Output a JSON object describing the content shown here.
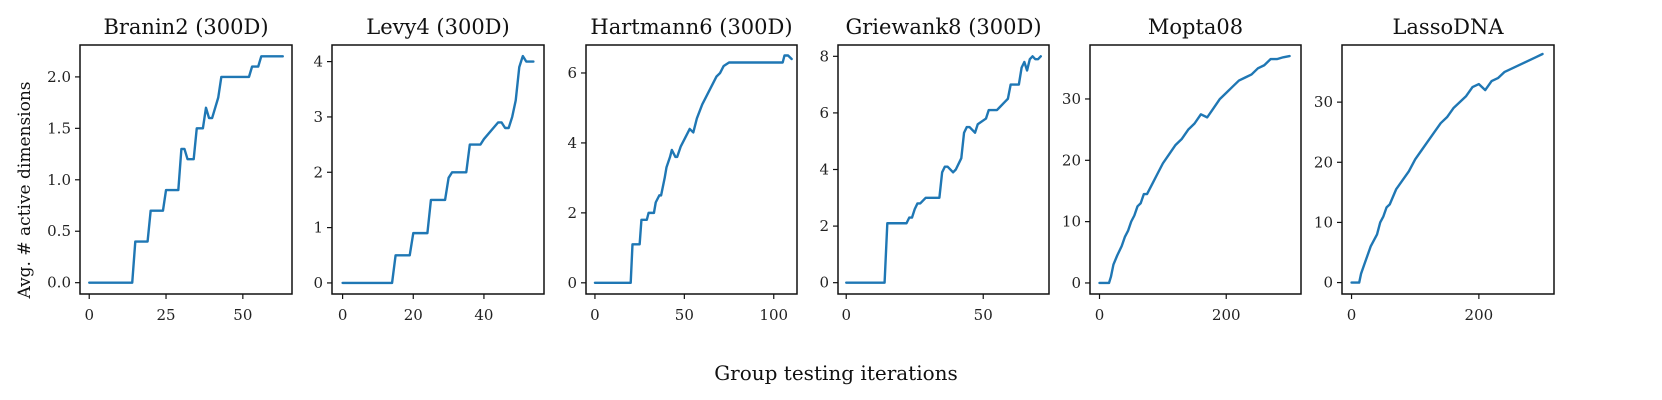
{
  "figure": {
    "xlabel": "Group testing iterations",
    "ylabel": "Avg. # active dimensions",
    "line_color": "#1f77b4"
  },
  "chart_data": [
    {
      "type": "line",
      "title": "Branin2 (300D)",
      "xlim": [
        -3,
        66
      ],
      "ylim": [
        -0.11,
        2.31
      ],
      "xticks": [
        0,
        25,
        50
      ],
      "yticks": [
        0.0,
        0.5,
        1.0,
        1.5,
        2.0
      ],
      "ytick_labels": [
        "0.0",
        "0.5",
        "1.0",
        "1.5",
        "2.0"
      ],
      "x": [
        0,
        14,
        15,
        19,
        20,
        24,
        25,
        29,
        30,
        31,
        32,
        34,
        35,
        37,
        38,
        39,
        40,
        42,
        43,
        45,
        51,
        52,
        53,
        54,
        55,
        56,
        57,
        58,
        63
      ],
      "y": [
        0,
        0,
        0.4,
        0.4,
        0.7,
        0.7,
        0.9,
        0.9,
        1.3,
        1.3,
        1.2,
        1.2,
        1.5,
        1.5,
        1.7,
        1.6,
        1.6,
        1.8,
        2.0,
        2.0,
        2.0,
        2.0,
        2.1,
        2.1,
        2.1,
        2.2,
        2.2,
        2.2,
        2.2
      ]
    },
    {
      "type": "line",
      "title": "Levy4 (300D)",
      "xlim": [
        -3,
        57
      ],
      "ylim": [
        -0.2,
        4.3
      ],
      "xticks": [
        0,
        20,
        40
      ],
      "yticks": [
        0,
        1,
        2,
        3,
        4
      ],
      "ytick_labels": [
        "0",
        "1",
        "2",
        "3",
        "4"
      ],
      "x": [
        0,
        14,
        15,
        19,
        20,
        24,
        25,
        29,
        30,
        31,
        35,
        36,
        39,
        40,
        44,
        45,
        46,
        47,
        48,
        49,
        50,
        51,
        52,
        54
      ],
      "y": [
        0,
        0,
        0.5,
        0.5,
        0.9,
        0.9,
        1.5,
        1.5,
        1.9,
        2.0,
        2.0,
        2.5,
        2.5,
        2.6,
        2.9,
        2.9,
        2.8,
        2.8,
        3.0,
        3.3,
        3.9,
        4.1,
        4.0,
        4.0
      ]
    },
    {
      "type": "line",
      "title": "Hartmann6 (300D)",
      "xlim": [
        -5,
        113
      ],
      "ylim": [
        -0.32,
        6.8
      ],
      "xticks": [
        0,
        50,
        100
      ],
      "yticks": [
        0,
        2,
        4,
        6
      ],
      "ytick_labels": [
        "0",
        "2",
        "4",
        "6"
      ],
      "x": [
        0,
        20,
        21,
        25,
        26,
        29,
        30,
        33,
        34,
        36,
        37,
        39,
        40,
        42,
        43,
        45,
        46,
        48,
        50,
        53,
        55,
        57,
        60,
        62,
        65,
        68,
        70,
        72,
        75,
        80,
        90,
        105,
        106,
        108,
        110
      ],
      "y": [
        0,
        0,
        1.1,
        1.1,
        1.8,
        1.8,
        2.0,
        2.0,
        2.3,
        2.5,
        2.5,
        3.0,
        3.3,
        3.6,
        3.8,
        3.6,
        3.6,
        3.9,
        4.1,
        4.4,
        4.3,
        4.7,
        5.1,
        5.3,
        5.6,
        5.9,
        6.0,
        6.2,
        6.3,
        6.3,
        6.3,
        6.3,
        6.5,
        6.5,
        6.4
      ]
    },
    {
      "type": "line",
      "title": "Griewank8 (300D)",
      "xlim": [
        -3,
        74
      ],
      "ylim": [
        -0.4,
        8.4
      ],
      "xticks": [
        0,
        50
      ],
      "yticks": [
        0,
        2,
        4,
        6,
        8
      ],
      "ytick_labels": [
        "0",
        "2",
        "4",
        "6",
        "8"
      ],
      "x": [
        0,
        14,
        15,
        22,
        23,
        24,
        25,
        26,
        27,
        29,
        30,
        34,
        35,
        36,
        37,
        39,
        40,
        42,
        43,
        44,
        45,
        47,
        48,
        51,
        52,
        55,
        56,
        58,
        59,
        60,
        63,
        64,
        65,
        66,
        67,
        68,
        69,
        70,
        71
      ],
      "y": [
        0,
        0,
        2.1,
        2.1,
        2.3,
        2.3,
        2.6,
        2.8,
        2.8,
        3.0,
        3.0,
        3.0,
        3.9,
        4.1,
        4.1,
        3.9,
        4.0,
        4.4,
        5.3,
        5.5,
        5.5,
        5.3,
        5.6,
        5.8,
        6.1,
        6.1,
        6.2,
        6.4,
        6.5,
        7.0,
        7.0,
        7.6,
        7.8,
        7.5,
        7.9,
        8.0,
        7.9,
        7.9,
        8.0
      ]
    },
    {
      "type": "line",
      "title": "Mopta08",
      "xlim": [
        -15,
        318
      ],
      "ylim": [
        -1.8,
        38.8
      ],
      "xticks": [
        0,
        200
      ],
      "yticks": [
        0,
        10,
        20,
        30
      ],
      "ytick_labels": [
        "0",
        "10",
        "20",
        "30"
      ],
      "x": [
        0,
        15,
        18,
        22,
        28,
        35,
        40,
        45,
        50,
        55,
        60,
        65,
        70,
        75,
        80,
        85,
        90,
        100,
        110,
        120,
        130,
        140,
        150,
        160,
        170,
        180,
        190,
        200,
        210,
        220,
        230,
        240,
        250,
        260,
        270,
        280,
        290,
        300
      ],
      "y": [
        0,
        0,
        1.0,
        3.0,
        4.5,
        6.0,
        7.5,
        8.5,
        10.0,
        11.0,
        12.5,
        13.0,
        14.5,
        14.5,
        15.5,
        16.5,
        17.5,
        19.5,
        21.0,
        22.5,
        23.5,
        25.0,
        26.0,
        27.5,
        27.0,
        28.5,
        30.0,
        31.0,
        32.0,
        33.0,
        33.5,
        34.0,
        35.0,
        35.5,
        36.5,
        36.5,
        36.8,
        37.0
      ]
    },
    {
      "type": "line",
      "title": "LassoDNA",
      "xlim": [
        -15,
        318
      ],
      "ylim": [
        -1.9,
        39.5
      ],
      "xticks": [
        0,
        200
      ],
      "yticks": [
        0,
        10,
        20,
        30
      ],
      "ytick_labels": [
        "0",
        "10",
        "20",
        "30"
      ],
      "x": [
        0,
        12,
        15,
        20,
        25,
        30,
        35,
        40,
        45,
        50,
        55,
        60,
        70,
        80,
        90,
        100,
        110,
        120,
        130,
        140,
        150,
        160,
        170,
        180,
        190,
        200,
        210,
        220,
        230,
        240,
        250,
        260,
        270,
        280,
        290,
        300
      ],
      "y": [
        0,
        0,
        1.5,
        3.0,
        4.5,
        6.0,
        7.0,
        8.0,
        10.0,
        11.0,
        12.5,
        13.0,
        15.5,
        17.0,
        18.5,
        20.5,
        22.0,
        23.5,
        25.0,
        26.5,
        27.5,
        29.0,
        30.0,
        31.0,
        32.5,
        33.0,
        32.0,
        33.5,
        34.0,
        35.0,
        35.5,
        36.0,
        36.5,
        37.0,
        37.5,
        38.0
      ]
    }
  ]
}
